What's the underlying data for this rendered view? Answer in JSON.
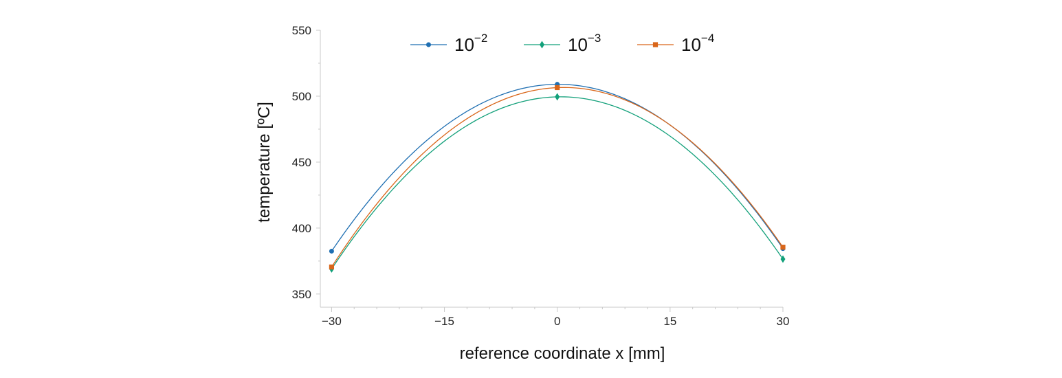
{
  "chart_data": {
    "type": "line",
    "xlabel": "reference coordinate x [mm]",
    "ylabel": "temperature [ºC]",
    "xlim": [
      -31.5,
      30
    ],
    "ylim": [
      340,
      550
    ],
    "x_ticks": [
      -30,
      -15,
      0,
      15,
      30
    ],
    "x_tick_labels": [
      "−30",
      "−15",
      "0",
      "15",
      "30"
    ],
    "y_ticks": [
      350,
      400,
      450,
      500,
      550
    ],
    "y_tick_labels": [
      "350",
      "400",
      "450",
      "500",
      "550"
    ],
    "x": [
      -30,
      0,
      30
    ],
    "legend_position": "top-center",
    "curve": "smooth quadratic fit through points",
    "grid": false,
    "series": [
      {
        "name_base": "10",
        "name_exp": "−2",
        "color": "#1f6fb2",
        "marker": "circle",
        "values": [
          382.5,
          509,
          384.5
        ]
      },
      {
        "name_base": "10",
        "name_exp": "−3",
        "color": "#12a07a",
        "marker": "diamond",
        "values": [
          369,
          499.5,
          376.5
        ]
      },
      {
        "name_base": "10",
        "name_exp": "−4",
        "color": "#d9661a",
        "marker": "square",
        "values": [
          370.5,
          506.5,
          385.5
        ]
      }
    ]
  }
}
